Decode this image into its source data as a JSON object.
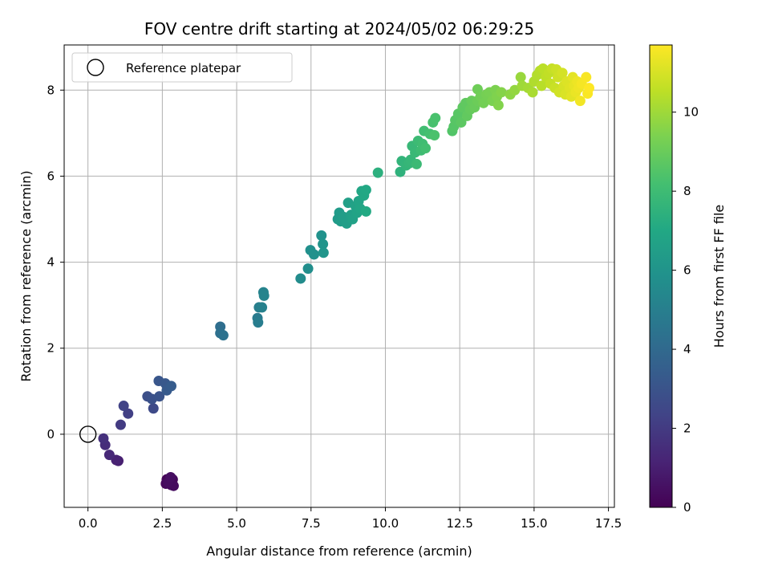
{
  "chart_data": {
    "type": "scatter",
    "title": "FOV centre drift starting at 2024/05/02 06:29:25",
    "xlabel": "Angular distance from reference (arcmin)",
    "ylabel": "Rotation from reference (arcmin)",
    "xlim": [
      -0.8,
      17.7
    ],
    "ylim": [
      -1.7,
      9.05
    ],
    "xticks": [
      0.0,
      2.5,
      5.0,
      7.5,
      10.0,
      12.5,
      15.0,
      17.5
    ],
    "xtick_labels": [
      "0.0",
      "2.5",
      "5.0",
      "7.5",
      "10.0",
      "12.5",
      "15.0",
      "17.5"
    ],
    "yticks": [
      0,
      2,
      4,
      6,
      8
    ],
    "ytick_labels": [
      "0",
      "2",
      "4",
      "6",
      "8"
    ],
    "grid": true,
    "legend": {
      "position": "top-left",
      "entries": [
        "Reference platepar"
      ]
    },
    "reference_point": {
      "x": 0.0,
      "y": 0.0,
      "label": "Reference platepar"
    },
    "colorbar": {
      "label": "Hours from first FF file",
      "range": [
        0,
        11.7
      ],
      "ticks": [
        0,
        2,
        4,
        6,
        8,
        10
      ],
      "tick_labels": [
        "0",
        "2",
        "4",
        "6",
        "8",
        "10"
      ],
      "colormap": "viridis"
    },
    "points": [
      {
        "x": 2.65,
        "y": -1.05,
        "c": 0.1
      },
      {
        "x": 2.75,
        "y": -1.1,
        "c": 0.15
      },
      {
        "x": 2.85,
        "y": -1.05,
        "c": 0.2
      },
      {
        "x": 2.62,
        "y": -1.15,
        "c": 0.25
      },
      {
        "x": 2.8,
        "y": -1.18,
        "c": 0.3
      },
      {
        "x": 2.88,
        "y": -1.2,
        "c": 0.35
      },
      {
        "x": 2.7,
        "y": -1.12,
        "c": 0.4
      },
      {
        "x": 2.78,
        "y": -1.0,
        "c": 0.45
      },
      {
        "x": 1.02,
        "y": -0.62,
        "c": 1.0
      },
      {
        "x": 0.95,
        "y": -0.6,
        "c": 1.1
      },
      {
        "x": 0.72,
        "y": -0.48,
        "c": 1.3
      },
      {
        "x": 0.58,
        "y": -0.25,
        "c": 1.5
      },
      {
        "x": 0.52,
        "y": -0.1,
        "c": 1.6
      },
      {
        "x": 1.1,
        "y": 0.22,
        "c": 2.0
      },
      {
        "x": 1.35,
        "y": 0.48,
        "c": 2.2
      },
      {
        "x": 1.2,
        "y": 0.66,
        "c": 2.3
      },
      {
        "x": 2.2,
        "y": 0.6,
        "c": 2.6
      },
      {
        "x": 2.0,
        "y": 0.88,
        "c": 2.8
      },
      {
        "x": 2.15,
        "y": 0.82,
        "c": 2.9
      },
      {
        "x": 2.4,
        "y": 0.88,
        "c": 3.0
      },
      {
        "x": 2.38,
        "y": 1.24,
        "c": 3.1
      },
      {
        "x": 2.6,
        "y": 1.18,
        "c": 3.2
      },
      {
        "x": 2.65,
        "y": 1.02,
        "c": 3.3
      },
      {
        "x": 2.8,
        "y": 1.12,
        "c": 3.4
      },
      {
        "x": 4.45,
        "y": 2.5,
        "c": 4.2
      },
      {
        "x": 4.45,
        "y": 2.35,
        "c": 4.3
      },
      {
        "x": 4.55,
        "y": 2.3,
        "c": 4.4
      },
      {
        "x": 5.7,
        "y": 2.7,
        "c": 4.8
      },
      {
        "x": 5.72,
        "y": 2.6,
        "c": 4.9
      },
      {
        "x": 5.75,
        "y": 2.95,
        "c": 5.0
      },
      {
        "x": 5.85,
        "y": 2.95,
        "c": 5.1
      },
      {
        "x": 5.9,
        "y": 3.3,
        "c": 5.2
      },
      {
        "x": 5.92,
        "y": 3.22,
        "c": 5.25
      },
      {
        "x": 7.15,
        "y": 3.62,
        "c": 5.6
      },
      {
        "x": 7.4,
        "y": 3.85,
        "c": 5.7
      },
      {
        "x": 7.48,
        "y": 4.28,
        "c": 5.8
      },
      {
        "x": 7.6,
        "y": 4.18,
        "c": 5.85
      },
      {
        "x": 7.85,
        "y": 4.62,
        "c": 5.9
      },
      {
        "x": 7.9,
        "y": 4.42,
        "c": 6.0
      },
      {
        "x": 7.92,
        "y": 4.22,
        "c": 6.05
      },
      {
        "x": 8.4,
        "y": 5.0,
        "c": 6.3
      },
      {
        "x": 8.45,
        "y": 5.15,
        "c": 6.35
      },
      {
        "x": 8.5,
        "y": 4.95,
        "c": 6.4
      },
      {
        "x": 8.6,
        "y": 5.05,
        "c": 6.45
      },
      {
        "x": 8.7,
        "y": 4.9,
        "c": 6.5
      },
      {
        "x": 8.75,
        "y": 5.38,
        "c": 6.55
      },
      {
        "x": 8.85,
        "y": 5.1,
        "c": 6.6
      },
      {
        "x": 8.9,
        "y": 5.0,
        "c": 6.65
      },
      {
        "x": 9.0,
        "y": 5.3,
        "c": 6.7
      },
      {
        "x": 9.05,
        "y": 5.15,
        "c": 6.75
      },
      {
        "x": 9.1,
        "y": 5.42,
        "c": 6.8
      },
      {
        "x": 9.15,
        "y": 5.25,
        "c": 6.85
      },
      {
        "x": 9.2,
        "y": 5.65,
        "c": 6.9
      },
      {
        "x": 9.28,
        "y": 5.55,
        "c": 6.95
      },
      {
        "x": 9.35,
        "y": 5.68,
        "c": 7.0
      },
      {
        "x": 9.35,
        "y": 5.18,
        "c": 7.05
      },
      {
        "x": 9.75,
        "y": 6.08,
        "c": 7.4
      },
      {
        "x": 10.5,
        "y": 6.1,
        "c": 7.5
      },
      {
        "x": 10.55,
        "y": 6.35,
        "c": 7.6
      },
      {
        "x": 10.7,
        "y": 6.25,
        "c": 7.65
      },
      {
        "x": 10.8,
        "y": 6.3,
        "c": 7.7
      },
      {
        "x": 10.85,
        "y": 6.38,
        "c": 7.75
      },
      {
        "x": 10.9,
        "y": 6.7,
        "c": 7.8
      },
      {
        "x": 11.0,
        "y": 6.55,
        "c": 7.85
      },
      {
        "x": 11.05,
        "y": 6.28,
        "c": 7.9
      },
      {
        "x": 11.1,
        "y": 6.82,
        "c": 7.95
      },
      {
        "x": 11.2,
        "y": 6.6,
        "c": 8.0
      },
      {
        "x": 11.25,
        "y": 6.75,
        "c": 8.05
      },
      {
        "x": 11.3,
        "y": 7.05,
        "c": 8.1
      },
      {
        "x": 11.35,
        "y": 6.65,
        "c": 8.15
      },
      {
        "x": 11.5,
        "y": 6.98,
        "c": 8.2
      },
      {
        "x": 11.6,
        "y": 7.25,
        "c": 8.25
      },
      {
        "x": 11.68,
        "y": 7.35,
        "c": 8.3
      },
      {
        "x": 11.65,
        "y": 6.95,
        "c": 8.35
      },
      {
        "x": 12.25,
        "y": 7.05,
        "c": 8.5
      },
      {
        "x": 12.3,
        "y": 7.15,
        "c": 8.55
      },
      {
        "x": 12.35,
        "y": 7.3,
        "c": 8.6
      },
      {
        "x": 12.45,
        "y": 7.45,
        "c": 8.65
      },
      {
        "x": 12.55,
        "y": 7.25,
        "c": 8.7
      },
      {
        "x": 12.6,
        "y": 7.6,
        "c": 8.75
      },
      {
        "x": 12.7,
        "y": 7.7,
        "c": 8.8
      },
      {
        "x": 12.75,
        "y": 7.4,
        "c": 8.85
      },
      {
        "x": 12.85,
        "y": 7.55,
        "c": 8.9
      },
      {
        "x": 12.9,
        "y": 7.75,
        "c": 8.95
      },
      {
        "x": 13.0,
        "y": 7.6,
        "c": 9.0
      },
      {
        "x": 13.1,
        "y": 7.75,
        "c": 9.05
      },
      {
        "x": 13.1,
        "y": 8.02,
        "c": 9.1
      },
      {
        "x": 13.2,
        "y": 7.85,
        "c": 9.15
      },
      {
        "x": 13.3,
        "y": 7.7,
        "c": 9.2
      },
      {
        "x": 13.4,
        "y": 7.9,
        "c": 9.25
      },
      {
        "x": 13.5,
        "y": 7.95,
        "c": 9.3
      },
      {
        "x": 13.6,
        "y": 7.75,
        "c": 9.35
      },
      {
        "x": 13.7,
        "y": 8.0,
        "c": 9.4
      },
      {
        "x": 13.75,
        "y": 7.85,
        "c": 9.45
      },
      {
        "x": 13.8,
        "y": 7.65,
        "c": 9.5
      },
      {
        "x": 13.9,
        "y": 7.95,
        "c": 9.55
      },
      {
        "x": 14.2,
        "y": 7.9,
        "c": 9.7
      },
      {
        "x": 14.35,
        "y": 8.0,
        "c": 9.8
      },
      {
        "x": 14.55,
        "y": 8.3,
        "c": 9.9
      },
      {
        "x": 14.6,
        "y": 8.1,
        "c": 10.0
      },
      {
        "x": 14.8,
        "y": 8.05,
        "c": 10.1
      },
      {
        "x": 14.95,
        "y": 7.95,
        "c": 10.2
      },
      {
        "x": 15.0,
        "y": 8.2,
        "c": 10.3
      },
      {
        "x": 15.1,
        "y": 8.35,
        "c": 10.35
      },
      {
        "x": 15.2,
        "y": 8.45,
        "c": 10.4
      },
      {
        "x": 15.25,
        "y": 8.1,
        "c": 10.45
      },
      {
        "x": 15.3,
        "y": 8.5,
        "c": 10.5
      },
      {
        "x": 15.4,
        "y": 8.3,
        "c": 10.55
      },
      {
        "x": 15.5,
        "y": 8.4,
        "c": 10.6
      },
      {
        "x": 15.55,
        "y": 8.15,
        "c": 10.65
      },
      {
        "x": 15.6,
        "y": 8.5,
        "c": 10.7
      },
      {
        "x": 15.7,
        "y": 8.05,
        "c": 10.75
      },
      {
        "x": 15.75,
        "y": 8.48,
        "c": 10.8
      },
      {
        "x": 15.8,
        "y": 8.3,
        "c": 10.85
      },
      {
        "x": 15.85,
        "y": 7.95,
        "c": 10.9
      },
      {
        "x": 15.95,
        "y": 8.4,
        "c": 10.95
      },
      {
        "x": 16.0,
        "y": 8.1,
        "c": 11.0
      },
      {
        "x": 16.05,
        "y": 7.9,
        "c": 11.05
      },
      {
        "x": 16.1,
        "y": 8.2,
        "c": 11.1
      },
      {
        "x": 16.2,
        "y": 8.05,
        "c": 11.15
      },
      {
        "x": 16.25,
        "y": 7.85,
        "c": 11.2
      },
      {
        "x": 16.3,
        "y": 8.3,
        "c": 11.25
      },
      {
        "x": 16.35,
        "y": 8.1,
        "c": 11.3
      },
      {
        "x": 16.4,
        "y": 7.95,
        "c": 11.35
      },
      {
        "x": 16.45,
        "y": 8.2,
        "c": 11.4
      },
      {
        "x": 16.5,
        "y": 8.05,
        "c": 11.45
      },
      {
        "x": 16.55,
        "y": 7.75,
        "c": 11.5
      },
      {
        "x": 16.6,
        "y": 8.15,
        "c": 11.55
      },
      {
        "x": 16.75,
        "y": 8.3,
        "c": 11.6
      },
      {
        "x": 16.8,
        "y": 7.92,
        "c": 11.65
      },
      {
        "x": 16.85,
        "y": 8.05,
        "c": 11.7
      }
    ]
  }
}
